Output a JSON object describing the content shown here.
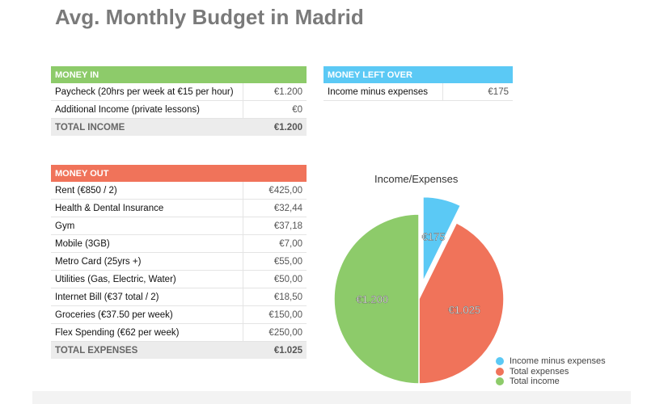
{
  "title": "Avg. Monthly Budget in Madrid",
  "colors": {
    "green": "#8dcb6a",
    "blue": "#5bc9f5",
    "red": "#f0735a"
  },
  "money_in": {
    "header": "MONEY IN",
    "rows": [
      {
        "label": "Paycheck (20hrs per week at €15 per hour)",
        "value": "€1.200"
      },
      {
        "label": "Additional Income (private lessons)",
        "value": "€0"
      }
    ],
    "total_label": "TOTAL INCOME",
    "total_value": "€1.200"
  },
  "money_left": {
    "header": "MONEY LEFT OVER",
    "rows": [
      {
        "label": "Income minus expenses",
        "value": "€175"
      }
    ]
  },
  "money_out": {
    "header": "MONEY OUT",
    "rows": [
      {
        "label": "Rent (€850 / 2)",
        "value": "€425,00"
      },
      {
        "label": "Health & Dental Insurance",
        "value": "€32,44"
      },
      {
        "label": "Gym",
        "value": "€37,18"
      },
      {
        "label": "Mobile (3GB)",
        "value": "€7,00"
      },
      {
        "label": "Metro Card (25yrs +)",
        "value": "€55,00"
      },
      {
        "label": "Utilities (Gas, Electric, Water)",
        "value": "€50,00"
      },
      {
        "label": "Internet Bill (€37 total / 2)",
        "value": "€18,50"
      },
      {
        "label": "Groceries (€37.50 per week)",
        "value": "€150,00"
      },
      {
        "label": "Flex Spending (€62 per week)",
        "value": "€250,00"
      }
    ],
    "total_label": "TOTAL EXPENSES",
    "total_value": "€1.025"
  },
  "chart_data": {
    "type": "pie",
    "title": "Income/Expenses",
    "legend": "bottom-right",
    "slices": [
      {
        "name": "Income minus expenses",
        "value": 175,
        "label": "€175",
        "color": "#5bc9f5",
        "exploded": true
      },
      {
        "name": "Total expenses",
        "value": 1025,
        "label": "€1.025",
        "color": "#f0735a"
      },
      {
        "name": "Total income",
        "value": 1200,
        "label": "€1.200",
        "color": "#8dcb6a"
      }
    ]
  }
}
